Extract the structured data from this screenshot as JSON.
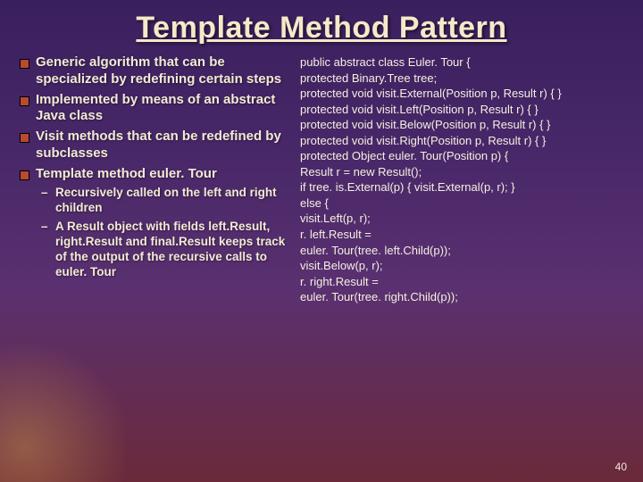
{
  "title": "Template Method Pattern",
  "pageNumber": "40",
  "colors": {
    "bg_top": "#3a1f5e",
    "bg_bottom": "#6b2a3a",
    "title_color": "#f5e9c8",
    "text_color": "#f2ead4",
    "bullet_fill": "#b84a2e"
  },
  "left": {
    "bullets": [
      "Generic algorithm that can be specialized by redefining certain steps",
      "Implemented by means of an abstract Java class",
      "Visit methods that can be redefined by subclasses",
      "Template method euler. Tour"
    ],
    "sub": [
      "Recursively called on the left and right children",
      "A Result object with fields left.Result, right.Result and final.Result keeps track of the output of the recursive calls to euler. Tour"
    ]
  },
  "right": {
    "lines": [
      "public abstract class Euler. Tour {",
      "    protected Binary.Tree tree;",
      "    protected void visit.External(Position p, Result r) { }",
      "    protected void visit.Left(Position p, Result r) { }",
      "    protected void visit.Below(Position p, Result r) { }",
      "",
      "    protected void visit.Right(Position p, Result r) { }",
      "    protected Object euler. Tour(Position p) {",
      "        Result r = new Result();",
      "        if tree. is.External(p) { visit.External(p, r); }",
      "            else {",
      "            visit.Left(p, r);",
      "            r. left.Result =",
      "euler. Tour(tree. left.Child(p));",
      "            visit.Below(p, r);",
      "            r. right.Result =",
      "euler. Tour(tree. right.Child(p));"
    ]
  }
}
